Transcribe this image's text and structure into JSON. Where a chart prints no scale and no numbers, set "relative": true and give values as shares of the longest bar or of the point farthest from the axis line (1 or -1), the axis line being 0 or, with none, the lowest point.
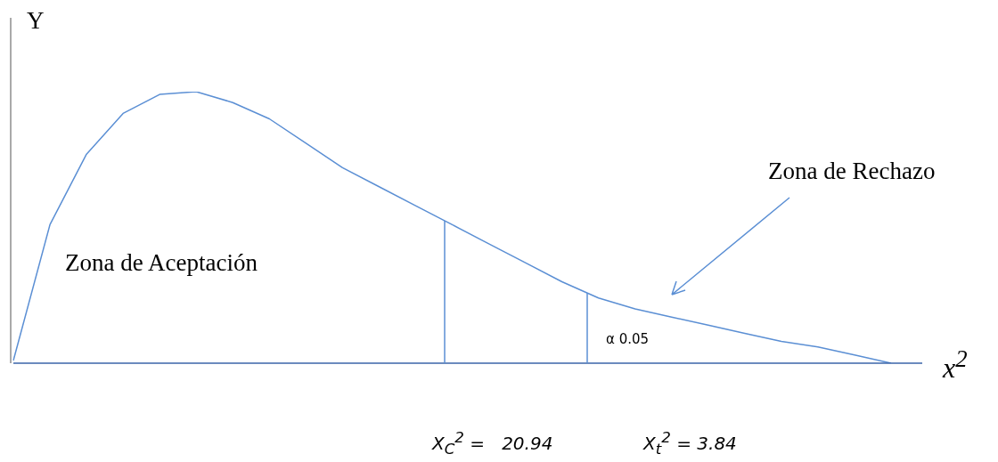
{
  "chart_data": {
    "type": "line",
    "relative": true,
    "tick_labels": false,
    "legend": false,
    "marker": "none",
    "ylabel": "Y",
    "xlabel": "x$^{2}$",
    "categories": [
      null,
      null,
      null,
      null,
      null,
      null,
      null,
      null,
      null,
      null,
      null,
      null,
      null,
      null,
      null,
      null,
      null,
      null,
      null,
      null,
      null,
      null,
      null,
      null,
      null
    ],
    "series": [
      {
        "color": "#5b8fd4",
        "values": [
          0.01,
          0.51,
          0.77,
          0.92,
          0.99,
          1,
          0.96,
          0.9,
          0.81,
          0.72,
          0.65,
          0.58,
          0.51,
          0.44,
          0.37,
          0.3,
          0.24,
          0.2,
          0.17,
          0.14,
          0.11,
          0.08,
          0.06,
          0.03,
          0
        ]
      }
    ],
    "annotations": [
      "Zona de Aceptación",
      "Zona de Rechazo",
      "α 0.05",
      "X$_{C}$$^{2}$ =   20.94",
      "X$_{t}$$^{2}$ = 3.84"
    ]
  }
}
